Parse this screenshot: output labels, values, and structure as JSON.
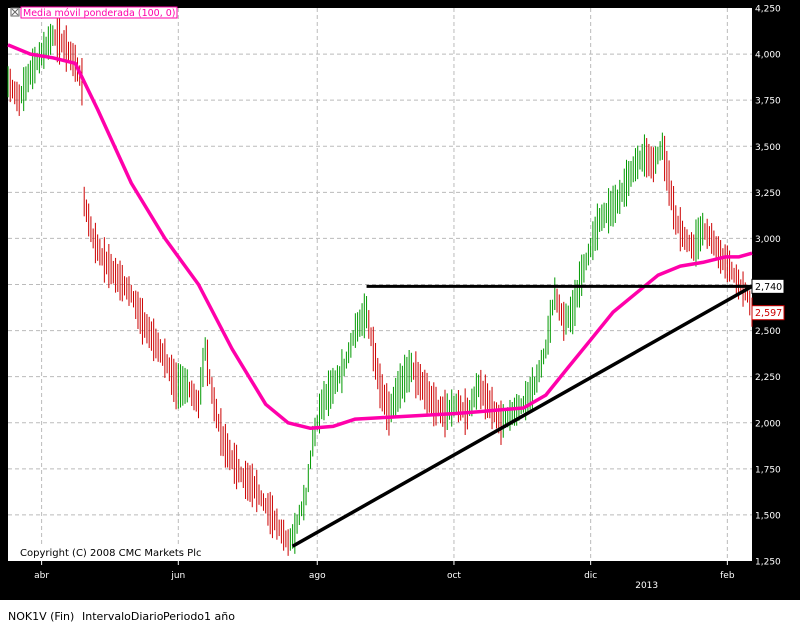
{
  "chart_data": {
    "type": "ohlc",
    "indicator_label": "Media móvil ponderada (100, 0)",
    "copyright": "Copyright (C) 2008 CMC Markets Plc",
    "y_ticks": [
      "4,250",
      "4,000",
      "3,750",
      "3,500",
      "3,250",
      "3,000",
      "2,750",
      "2,500",
      "2,250",
      "2,000",
      "1,750",
      "1,500",
      "1,250"
    ],
    "y_tick_values": [
      4.25,
      4.0,
      3.75,
      3.5,
      3.25,
      3.0,
      2.75,
      2.5,
      2.25,
      2.0,
      1.75,
      1.5,
      1.25
    ],
    "ylim": [
      1.25,
      4.25
    ],
    "x_labels": [
      {
        "label": "abr",
        "day": 15
      },
      {
        "label": "jun",
        "day": 76
      },
      {
        "label": "ago",
        "day": 138
      },
      {
        "label": "oct",
        "day": 199
      },
      {
        "label": "dic",
        "day": 260
      },
      {
        "label": "2013",
        "day": 285
      },
      {
        "label": "feb",
        "day": 321
      }
    ],
    "price_flags": [
      {
        "label": "2,740",
        "value": 2.74,
        "style": "level"
      },
      {
        "label": "2,597",
        "value": 2.597,
        "style": "last"
      }
    ],
    "price_series_approx": [
      [
        0,
        3.85
      ],
      [
        5,
        3.75
      ],
      [
        10,
        3.9
      ],
      [
        15,
        4.0
      ],
      [
        20,
        4.1
      ],
      [
        25,
        4.05
      ],
      [
        30,
        3.95
      ],
      [
        33,
        3.85
      ],
      [
        34,
        3.2
      ],
      [
        38,
        3.0
      ],
      [
        42,
        2.9
      ],
      [
        48,
        2.8
      ],
      [
        55,
        2.7
      ],
      [
        60,
        2.55
      ],
      [
        65,
        2.45
      ],
      [
        70,
        2.35
      ],
      [
        75,
        2.2
      ],
      [
        80,
        2.2
      ],
      [
        85,
        2.1
      ],
      [
        88,
        2.4
      ],
      [
        92,
        2.1
      ],
      [
        96,
        1.9
      ],
      [
        100,
        1.8
      ],
      [
        105,
        1.7
      ],
      [
        110,
        1.65
      ],
      [
        115,
        1.55
      ],
      [
        120,
        1.45
      ],
      [
        125,
        1.35
      ],
      [
        128,
        1.4
      ],
      [
        130,
        1.5
      ],
      [
        133,
        1.6
      ],
      [
        136,
        1.9
      ],
      [
        140,
        2.1
      ],
      [
        145,
        2.2
      ],
      [
        150,
        2.3
      ],
      [
        155,
        2.5
      ],
      [
        160,
        2.6
      ],
      [
        163,
        2.4
      ],
      [
        166,
        2.2
      ],
      [
        170,
        2.05
      ],
      [
        175,
        2.2
      ],
      [
        180,
        2.3
      ],
      [
        185,
        2.2
      ],
      [
        190,
        2.1
      ],
      [
        195,
        2.05
      ],
      [
        200,
        2.1
      ],
      [
        205,
        2.05
      ],
      [
        210,
        2.2
      ],
      [
        215,
        2.1
      ],
      [
        220,
        2.0
      ],
      [
        225,
        2.05
      ],
      [
        230,
        2.1
      ],
      [
        235,
        2.2
      ],
      [
        240,
        2.4
      ],
      [
        244,
        2.7
      ],
      [
        248,
        2.55
      ],
      [
        252,
        2.6
      ],
      [
        256,
        2.8
      ],
      [
        260,
        2.95
      ],
      [
        264,
        3.1
      ],
      [
        268,
        3.15
      ],
      [
        272,
        3.2
      ],
      [
        276,
        3.3
      ],
      [
        280,
        3.4
      ],
      [
        284,
        3.45
      ],
      [
        288,
        3.4
      ],
      [
        292,
        3.5
      ],
      [
        295,
        3.3
      ],
      [
        298,
        3.1
      ],
      [
        302,
        3.0
      ],
      [
        306,
        2.95
      ],
      [
        310,
        3.05
      ],
      [
        314,
        3.0
      ],
      [
        318,
        2.9
      ],
      [
        322,
        2.85
      ],
      [
        326,
        2.75
      ],
      [
        330,
        2.7
      ],
      [
        332,
        2.6
      ]
    ],
    "ma_series_approx": [
      [
        0,
        4.05
      ],
      [
        10,
        4.0
      ],
      [
        20,
        3.98
      ],
      [
        30,
        3.95
      ],
      [
        40,
        3.7
      ],
      [
        55,
        3.3
      ],
      [
        70,
        3.0
      ],
      [
        85,
        2.75
      ],
      [
        100,
        2.4
      ],
      [
        115,
        2.1
      ],
      [
        125,
        2.0
      ],
      [
        135,
        1.97
      ],
      [
        145,
        1.98
      ],
      [
        155,
        2.02
      ],
      [
        170,
        2.03
      ],
      [
        185,
        2.04
      ],
      [
        200,
        2.05
      ],
      [
        210,
        2.06
      ],
      [
        220,
        2.07
      ],
      [
        230,
        2.08
      ],
      [
        240,
        2.15
      ],
      [
        250,
        2.3
      ],
      [
        260,
        2.45
      ],
      [
        270,
        2.6
      ],
      [
        280,
        2.7
      ],
      [
        290,
        2.8
      ],
      [
        300,
        2.85
      ],
      [
        310,
        2.87
      ],
      [
        320,
        2.9
      ],
      [
        326,
        2.9
      ],
      [
        332,
        2.92
      ]
    ],
    "annotations": [
      {
        "type": "horizontal_line",
        "value": 2.74,
        "from_day": 160,
        "to_day": 332
      },
      {
        "type": "trend_line",
        "from": [
          127,
          1.33
        ],
        "to": [
          332,
          2.74
        ]
      }
    ],
    "colors": {
      "price": "#009900",
      "price_fall": "#cc0000",
      "ma": "#ff00aa",
      "lines": "#000000",
      "flag_level_border": "#000000",
      "flag_last_border": "#cc0000"
    }
  },
  "status_bar": {
    "symbol": "NOK1V (Fin)",
    "interval": "IntervaloDiario",
    "period": "Periodo1 año"
  }
}
